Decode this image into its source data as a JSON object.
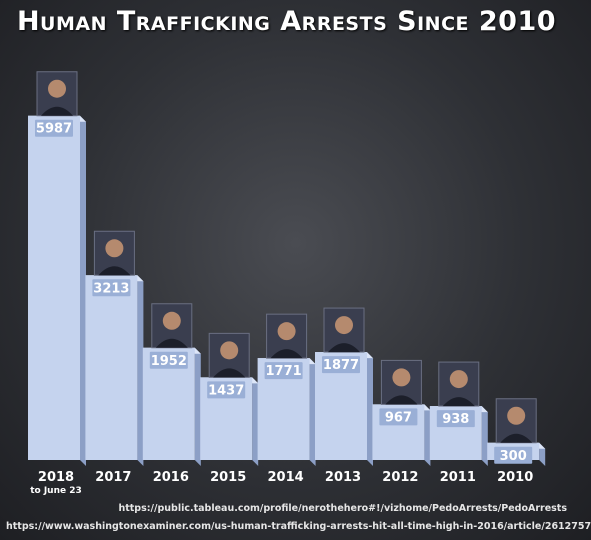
{
  "title": "Human Trafficking Arrests Since 2010",
  "chart_data": {
    "type": "bar",
    "title": "Human Trafficking Arrests Since 2010",
    "categories": [
      "2018",
      "2017",
      "2016",
      "2015",
      "2014",
      "2013",
      "2012",
      "2011",
      "2010"
    ],
    "category_notes": [
      "to June 23",
      "",
      "",
      "",
      "",
      "",
      "",
      "",
      ""
    ],
    "values": [
      5987,
      3213,
      1952,
      1437,
      1771,
      1877,
      967,
      938,
      300
    ],
    "value_labels": [
      "5987",
      "3213",
      "1952",
      "1437",
      "1771",
      "1877",
      "967",
      "938",
      "300"
    ],
    "ylim": [
      0,
      6000
    ],
    "grid": false,
    "legend": "none",
    "colors": {
      "bar_front": "#c5d3ee",
      "bar_side": "#8c9fc6",
      "bar_top": "#dde6f8",
      "label_bg": "#9aafd6"
    }
  },
  "sources": [
    "https://public.tableau.com/profile/nerothehero#!/vizhome/PedoArrests/PedoArrests",
    "https://www.washingtonexaminer.com/us-human-trafficking-arrests-hit-all-time-high-in-2016/article/2612757"
  ]
}
